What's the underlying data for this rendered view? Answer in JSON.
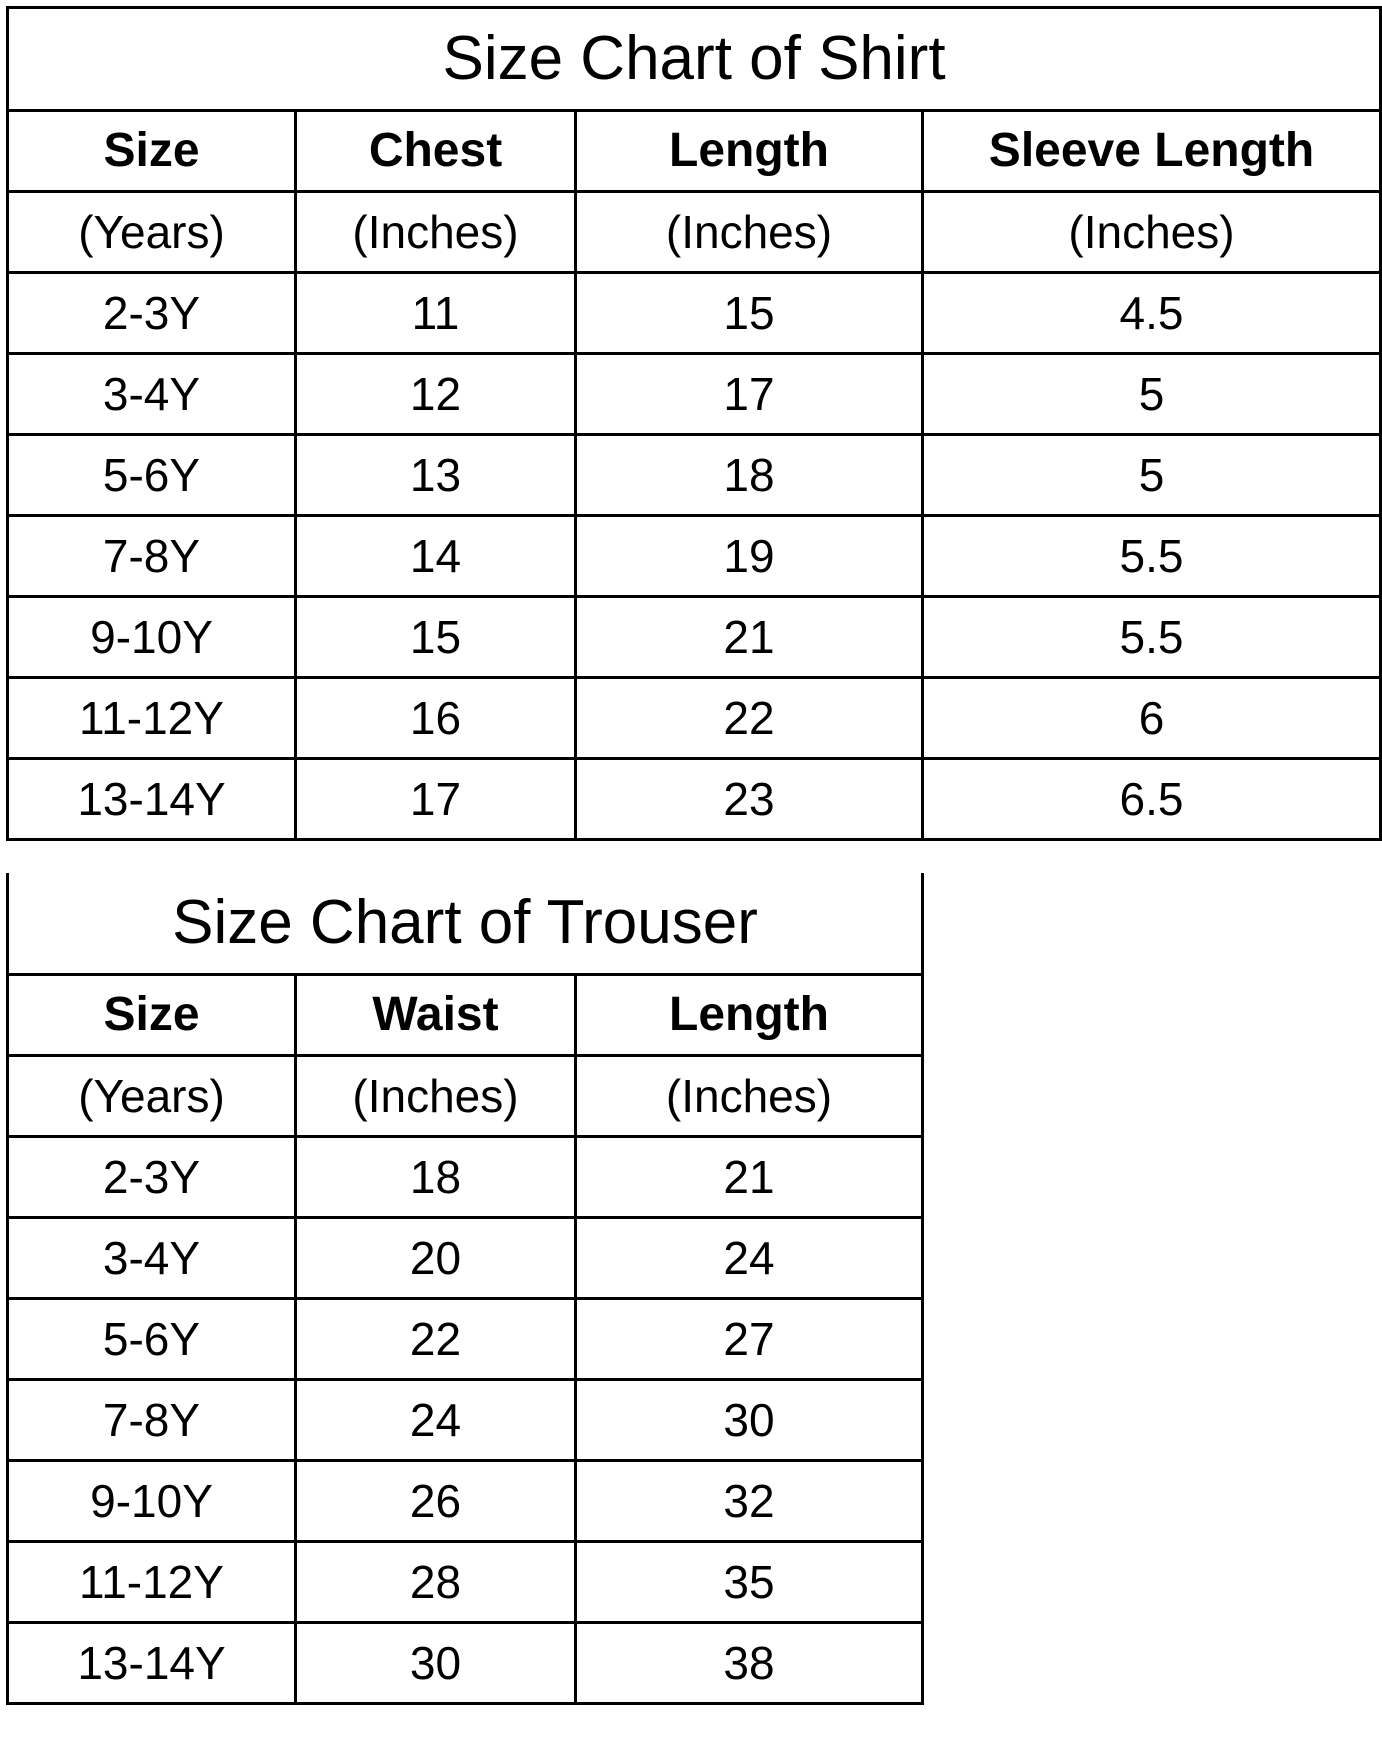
{
  "shirt": {
    "title": "Size Chart of  Shirt",
    "headers": [
      "Size",
      "Chest",
      "Length",
      "Sleeve Length"
    ],
    "units": [
      "(Years)",
      "(Inches)",
      "(Inches)",
      "(Inches)"
    ],
    "rows": [
      [
        "2-3Y",
        "11",
        "15",
        "4.5"
      ],
      [
        "3-4Y",
        "12",
        "17",
        "5"
      ],
      [
        "5-6Y",
        "13",
        "18",
        "5"
      ],
      [
        "7-8Y",
        "14",
        "19",
        "5.5"
      ],
      [
        "9-10Y",
        "15",
        "21",
        "5.5"
      ],
      [
        "11-12Y",
        "16",
        "22",
        "6"
      ],
      [
        "13-14Y",
        "17",
        "23",
        "6.5"
      ]
    ]
  },
  "trouser": {
    "title": "Size Chart of  Trouser",
    "headers": [
      "Size",
      "Waist",
      "Length"
    ],
    "units": [
      "(Years)",
      "(Inches)",
      "(Inches)"
    ],
    "rows": [
      [
        "2-3Y",
        "18",
        "21"
      ],
      [
        "3-4Y",
        "20",
        "24"
      ],
      [
        "5-6Y",
        "22",
        "27"
      ],
      [
        "7-8Y",
        "24",
        "30"
      ],
      [
        "9-10Y",
        "26",
        "32"
      ],
      [
        "11-12Y",
        "28",
        "35"
      ],
      [
        "13-14Y",
        "30",
        "38"
      ]
    ]
  }
}
